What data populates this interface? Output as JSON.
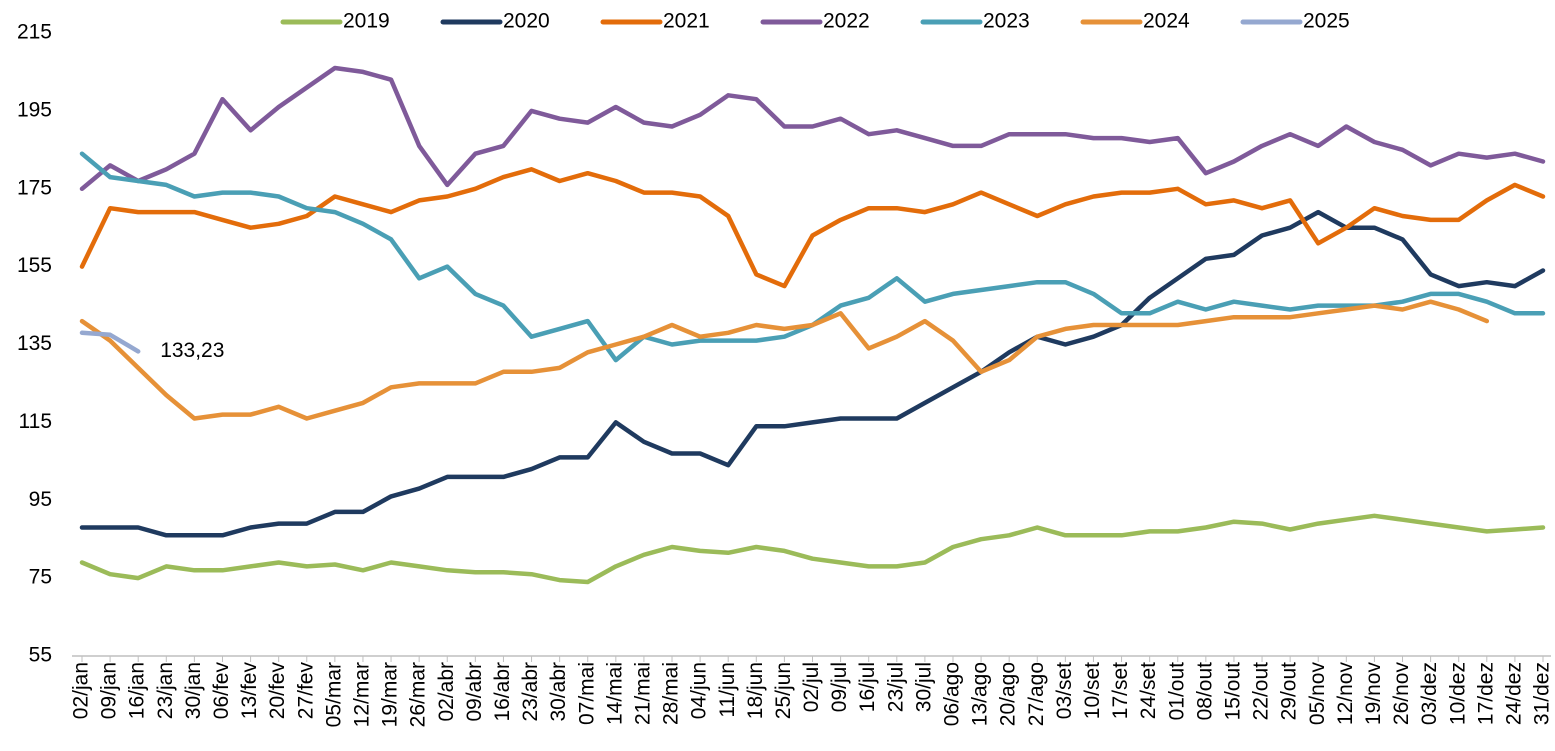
{
  "chart_data": {
    "type": "line",
    "categories": [
      "02/jan",
      "09/jan",
      "16/jan",
      "23/jan",
      "30/jan",
      "06/fev",
      "13/fev",
      "20/fev",
      "27/fev",
      "05/mar",
      "12/mar",
      "19/mar",
      "26/mar",
      "02/abr",
      "09/abr",
      "16/abr",
      "23/abr",
      "30/abr",
      "07/mai",
      "14/mai",
      "21/mai",
      "28/mai",
      "04/jun",
      "11/jun",
      "18/jun",
      "25/jun",
      "02/jul",
      "09/jul",
      "16/jul",
      "23/jul",
      "30/jul",
      "06/ago",
      "13/ago",
      "20/ago",
      "27/ago",
      "03/set",
      "10/set",
      "17/set",
      "24/set",
      "01/out",
      "08/out",
      "15/out",
      "22/out",
      "29/out",
      "05/nov",
      "12/nov",
      "19/nov",
      "26/nov",
      "03/dez",
      "10/dez",
      "17/dez",
      "24/dez",
      "31/dez"
    ],
    "series": [
      {
        "name": "2019",
        "color": "#9bbb59",
        "values": [
          79,
          76,
          75,
          78,
          77,
          77,
          78,
          79,
          78,
          78.5,
          77,
          79,
          78,
          77,
          76.5,
          76.5,
          76,
          74.5,
          74,
          78,
          81,
          83,
          82,
          81.5,
          83,
          82,
          80,
          79,
          78,
          78,
          79,
          83,
          85,
          86,
          88,
          86,
          86,
          86,
          87,
          87,
          88,
          89.5,
          89,
          87.5,
          89,
          90,
          91,
          90,
          89,
          88,
          87,
          87.5,
          88
        ]
      },
      {
        "name": "2020",
        "color": "#1f3a5f",
        "values": [
          88,
          88,
          88,
          86,
          86,
          86,
          88,
          89,
          89,
          92,
          92,
          96,
          98,
          101,
          101,
          101,
          103,
          106,
          106,
          115,
          110,
          107,
          107,
          104,
          114,
          114,
          115,
          116,
          116,
          116,
          120,
          124,
          128,
          133,
          137,
          135,
          137,
          140,
          147,
          152,
          157,
          158,
          163,
          165,
          169,
          165,
          165,
          162,
          153,
          150,
          151,
          150,
          154
        ]
      },
      {
        "name": "2021",
        "color": "#e36c0a",
        "values": [
          155,
          170,
          169,
          169,
          169,
          167,
          165,
          166,
          168,
          173,
          171,
          169,
          172,
          173,
          175,
          178,
          180,
          177,
          179,
          177,
          174,
          174,
          173,
          168,
          153,
          150,
          163,
          167,
          170,
          170,
          169,
          171,
          174,
          171,
          168,
          171,
          173,
          174,
          174,
          175,
          171,
          172,
          170,
          172,
          161,
          165,
          170,
          168,
          167,
          167,
          172,
          176,
          173
        ]
      },
      {
        "name": "2022",
        "color": "#7f5a9a",
        "values": [
          175,
          181,
          177,
          180,
          184,
          198,
          190,
          196,
          201,
          206,
          205,
          203,
          186,
          176,
          184,
          186,
          195,
          193,
          192,
          196,
          192,
          191,
          194,
          199,
          198,
          191,
          191,
          193,
          189,
          190,
          188,
          186,
          186,
          189,
          189,
          189,
          188,
          188,
          187,
          188,
          179,
          182,
          186,
          189,
          186,
          191,
          187,
          185,
          181,
          184,
          183,
          184,
          182
        ]
      },
      {
        "name": "2023",
        "color": "#4a9fb5",
        "values": [
          184,
          178,
          177,
          176,
          173,
          174,
          174,
          173,
          170,
          169,
          166,
          162,
          152,
          155,
          148,
          145,
          137,
          139,
          141,
          131,
          137,
          135,
          136,
          136,
          136,
          137,
          140,
          145,
          147,
          152,
          146,
          148,
          149,
          150,
          151,
          151,
          148,
          143,
          143,
          146,
          144,
          146,
          145,
          144,
          145,
          145,
          145,
          146,
          148,
          148,
          146,
          143,
          143
        ]
      },
      {
        "name": "2024",
        "color": "#e69138",
        "values": [
          141,
          136,
          129,
          122,
          116,
          117,
          117,
          119,
          116,
          118,
          120,
          124,
          125,
          125,
          125,
          128,
          128,
          129,
          133,
          135,
          137,
          140,
          137,
          138,
          140,
          139,
          140,
          143,
          134,
          137,
          141,
          136,
          128,
          131,
          137,
          139,
          140,
          140,
          140,
          140,
          141,
          142,
          142,
          142,
          143,
          144,
          145,
          144,
          146,
          144,
          141,
          null,
          null
        ]
      },
      {
        "name": "2025",
        "color": "#95a8d0",
        "values": [
          138,
          137.5,
          133.23,
          null,
          null,
          null,
          null,
          null,
          null,
          null,
          null,
          null,
          null,
          null,
          null,
          null,
          null,
          null,
          null,
          null,
          null,
          null,
          null,
          null,
          null,
          null,
          null,
          null,
          null,
          null,
          null,
          null,
          null,
          null,
          null,
          null,
          null,
          null,
          null,
          null,
          null,
          null,
          null,
          null,
          null,
          null,
          null,
          null,
          null,
          null,
          null,
          null,
          null
        ],
        "value_labels": [
          null,
          null,
          "133,23",
          null,
          null,
          null,
          null,
          null,
          null,
          null,
          null,
          null,
          null,
          null,
          null,
          null,
          null,
          null,
          null,
          null,
          null,
          null,
          null,
          null,
          null,
          null,
          null,
          null,
          null,
          null,
          null,
          null,
          null,
          null,
          null,
          null,
          null,
          null,
          null,
          null,
          null,
          null,
          null,
          null,
          null,
          null,
          null,
          null,
          null,
          null,
          null,
          null,
          null
        ]
      }
    ],
    "ylim": [
      55,
      215
    ],
    "yticks": [
      55,
      75,
      95,
      115,
      135,
      155,
      175,
      195,
      215
    ],
    "grid": false,
    "legend": "top"
  }
}
